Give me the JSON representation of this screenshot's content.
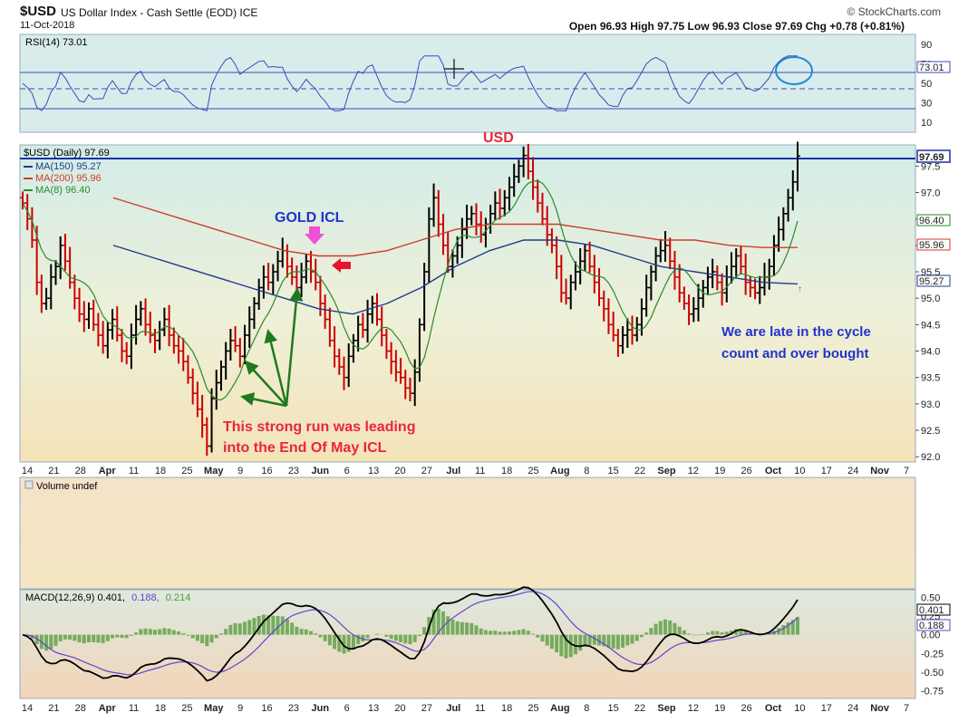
{
  "header": {
    "symbol": "$USD",
    "description": "US Dollar Index - Cash Settle (EOD) ICE",
    "date": "11-Oct-2018",
    "logo": "© StockCharts.com",
    "ohlc": "Open 96.93  High 97.75  Low 96.93  Close 97.69  Chg +0.78 (+0.81%)"
  },
  "rsi_panel": {
    "legend": "RSI(14) 73.01",
    "value_tag": "73.01",
    "ticks": [
      "90",
      "70",
      "50",
      "30",
      "10"
    ]
  },
  "price_panel": {
    "legend_symbol": "$USD (Daily) 97.69",
    "ma_legends": [
      "MA(150) 95.27",
      "MA(200) 95.96",
      "MA(8) 96.40"
    ],
    "ticks": [
      "97.5",
      "97.0",
      "96.5",
      "96.0",
      "95.5",
      "95.0",
      "94.5",
      "94.0",
      "93.5",
      "93.0",
      "92.5",
      "92.0"
    ],
    "tags": [
      "97.69",
      "96.40",
      "95.96",
      "95.27"
    ]
  },
  "volume_panel": {
    "legend": "Volume undef"
  },
  "macd_panel": {
    "legend_prefix": "MACD(12,26,9) 0.401,",
    "legend_signal": "0.188,",
    "legend_hist": "0.214",
    "ticks": [
      "0.50",
      "0.25",
      "0.00",
      "-0.25",
      "-0.50",
      "-0.75"
    ],
    "tags": [
      "0.401",
      "0.188"
    ]
  },
  "x_axis": {
    "labels": [
      "14",
      "21",
      "28",
      "Apr",
      "11",
      "18",
      "25",
      "May",
      "9",
      "16",
      "23",
      "Jun",
      "6",
      "13",
      "20",
      "27",
      "Jul",
      "11",
      "18",
      "25",
      "Aug",
      "8",
      "15",
      "22",
      "Sep",
      "12",
      "19",
      "26",
      "Oct",
      "10",
      "17",
      "24",
      "Nov",
      "7"
    ]
  },
  "annotations": {
    "usd": "USD",
    "gold_icl": "GOLD ICL",
    "run_line1": "This strong run was leading",
    "run_line2": "into the End Of May ICL",
    "late_line1": "We are late in the cycle",
    "late_line2": "count and over bought"
  },
  "colors": {
    "up_bar": "#000000",
    "down_bar": "#cc0000",
    "ma150": "#1f3b8c",
    "ma200": "#d23b2a",
    "ma8": "#2a8a2a",
    "rsi": "#3b4bb8",
    "macd": "#000000",
    "signal": "#6a3fd0",
    "hist": "#4f9a3a",
    "annotation_red": "#e8263a",
    "annotation_blue": "#2233cc",
    "annotation_green": "#1f7a1f"
  },
  "chart_data": {
    "type": "ohlc",
    "price_ylim": [
      91.9,
      97.9
    ],
    "close_series": [
      96.8,
      96.5,
      96.1,
      95.3,
      94.9,
      95.0,
      95.4,
      95.6,
      96.0,
      95.7,
      95.3,
      95.0,
      94.7,
      94.6,
      94.8,
      94.5,
      94.3,
      94.1,
      94.4,
      94.6,
      94.3,
      94.0,
      93.9,
      94.3,
      94.6,
      94.8,
      94.5,
      94.3,
      94.2,
      94.4,
      94.6,
      94.3,
      94.1,
      94.0,
      93.8,
      93.5,
      93.2,
      92.9,
      92.6,
      92.2,
      93.1,
      93.4,
      93.7,
      94.0,
      94.2,
      94.1,
      93.9,
      94.3,
      94.6,
      94.9,
      95.2,
      95.4,
      95.3,
      95.5,
      95.7,
      95.9,
      95.6,
      95.4,
      95.2,
      95.4,
      95.7,
      95.5,
      95.3,
      94.9,
      94.6,
      94.2,
      93.9,
      93.7,
      93.5,
      93.9,
      94.2,
      94.5,
      94.4,
      94.7,
      94.9,
      94.6,
      94.3,
      94.0,
      93.8,
      93.6,
      93.5,
      93.3,
      93.2,
      93.6,
      94.5,
      95.5,
      96.5,
      96.9,
      96.4,
      96.0,
      95.6,
      95.8,
      96.0,
      96.3,
      96.5,
      96.6,
      96.4,
      96.2,
      96.4,
      96.6,
      96.8,
      96.7,
      96.9,
      97.1,
      97.3,
      97.5,
      97.7,
      97.4,
      97.1,
      96.8,
      96.5,
      96.2,
      96.0,
      95.6,
      95.1,
      95.0,
      95.3,
      95.5,
      95.7,
      95.9,
      95.6,
      95.3,
      95.0,
      94.8,
      94.5,
      94.3,
      94.1,
      94.3,
      94.4,
      94.3,
      94.5,
      94.8,
      95.2,
      95.5,
      95.8,
      95.9,
      96.0,
      95.7,
      95.4,
      95.1,
      94.9,
      94.7,
      94.8,
      95.0,
      95.2,
      95.4,
      95.5,
      95.3,
      95.1,
      95.4,
      95.6,
      95.8,
      95.6,
      95.3,
      95.2,
      95.1,
      95.2,
      95.4,
      95.6,
      96.0,
      96.3,
      96.6,
      96.9,
      97.2,
      97.69
    ],
    "ma150_series": [
      96.0,
      95.8,
      95.6,
      95.4,
      95.2,
      95.0,
      94.8,
      94.7,
      94.9,
      95.2,
      95.6,
      95.9,
      96.1,
      96.1,
      96.0,
      95.8,
      95.6,
      95.5,
      95.4,
      95.3,
      95.27
    ],
    "ma200_series": [
      96.9,
      96.7,
      96.5,
      96.3,
      96.1,
      95.9,
      95.8,
      95.8,
      95.9,
      96.1,
      96.3,
      96.4,
      96.4,
      96.4,
      96.3,
      96.2,
      96.1,
      96.1,
      96.0,
      95.96,
      95.96
    ],
    "rsi_ylim": [
      0,
      100
    ],
    "macd_ylim": [
      -0.85,
      0.6
    ],
    "macd_value": 0.401,
    "signal_value": 0.188,
    "hist_value": 0.214
  }
}
